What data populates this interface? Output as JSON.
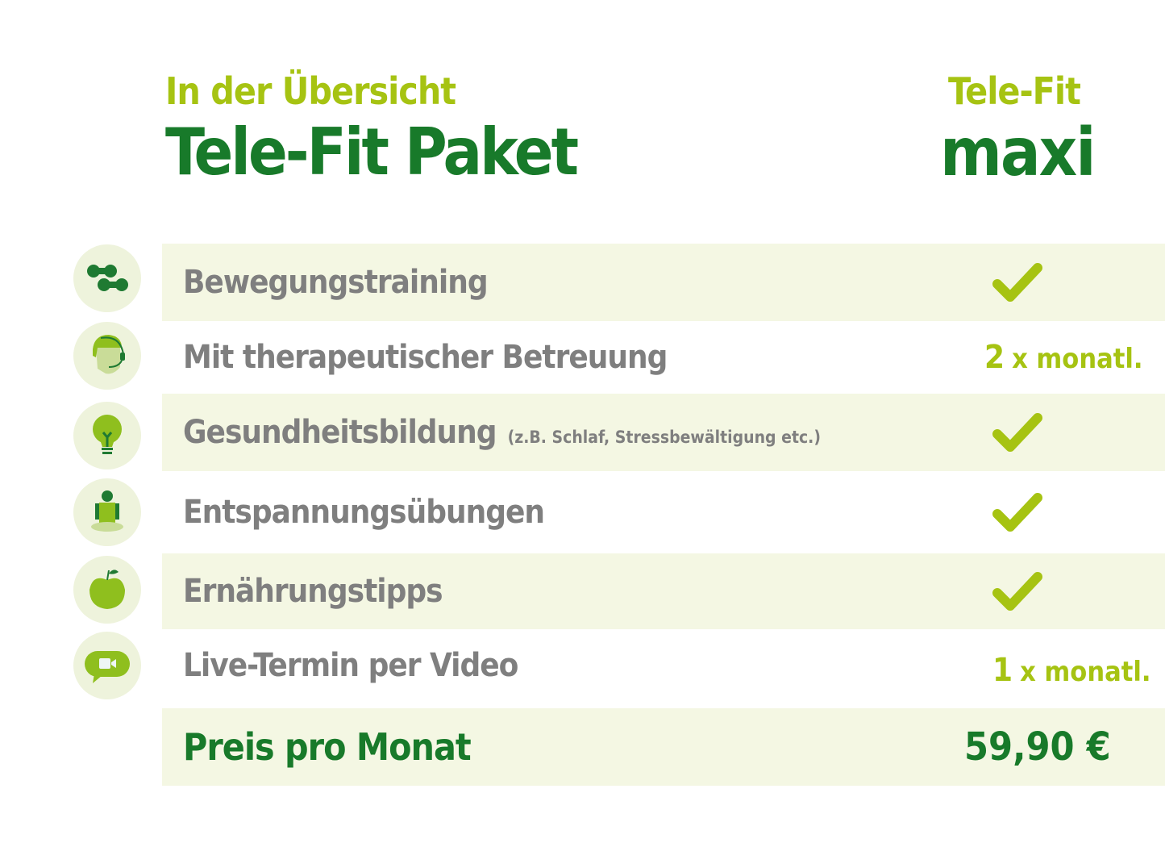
{
  "header": {
    "subtitle": "In der Übersicht",
    "title": "Tele-Fit Paket"
  },
  "plan": {
    "label_top": "Tele-Fit",
    "label_name": "maxi"
  },
  "colors": {
    "lime": "#a6c312",
    "dark_green": "#187a2a",
    "row_shade": "#f4f7e3",
    "text_gray": "#7f7f7f"
  },
  "features": [
    {
      "icon": "dumbbell-icon",
      "label": "Bewegungstraining",
      "value": "check"
    },
    {
      "icon": "therapist-headset-icon",
      "label": "Mit therapeutischer Betreuung",
      "value_num": "2",
      "value_unit": "x monatl."
    },
    {
      "icon": "lightbulb-icon",
      "label": "Gesundheitsbildung",
      "note": "(z.B. Schlaf, Stressbewältigung etc.)",
      "value": "check"
    },
    {
      "icon": "meditation-icon",
      "label": "Entspannungsübungen",
      "value": "check"
    },
    {
      "icon": "apple-icon",
      "label": "Ernährungstipps",
      "value": "check"
    },
    {
      "icon": "video-chat-icon",
      "label": "Live-Termin per Video",
      "value_num": "1",
      "value_unit": "x monatl."
    }
  ],
  "price": {
    "label": "Preis pro Monat",
    "value": "59,90 €"
  }
}
